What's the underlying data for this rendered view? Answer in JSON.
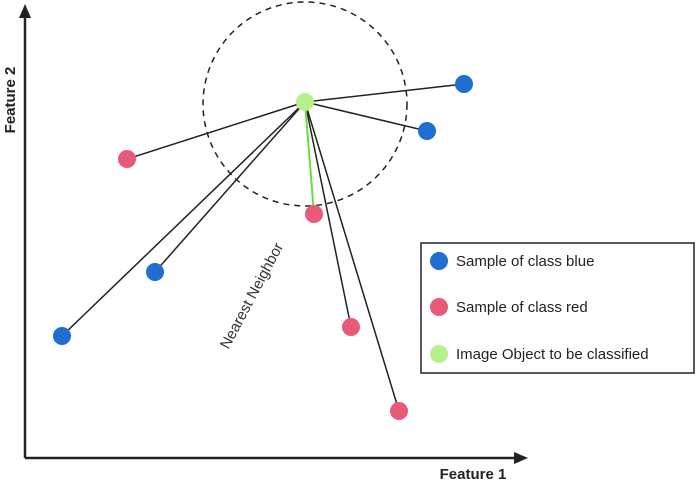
{
  "axes": {
    "x_label": "Feature 1",
    "y_label": "Feature 2"
  },
  "annotation": "Nearest Neighbor",
  "legend": {
    "items": [
      {
        "label": "Sample of class blue",
        "color": "#1f6fd1"
      },
      {
        "label": "Sample of class red",
        "color": "#e85a78"
      },
      {
        "label": "Image Object to be classified",
        "color": "#b6f08a"
      }
    ]
  },
  "colors": {
    "blue": "#1f6fd1",
    "red": "#e85a78",
    "query": "#b6f08a",
    "nearest_line": "#66dd44",
    "line": "#222222"
  }
}
